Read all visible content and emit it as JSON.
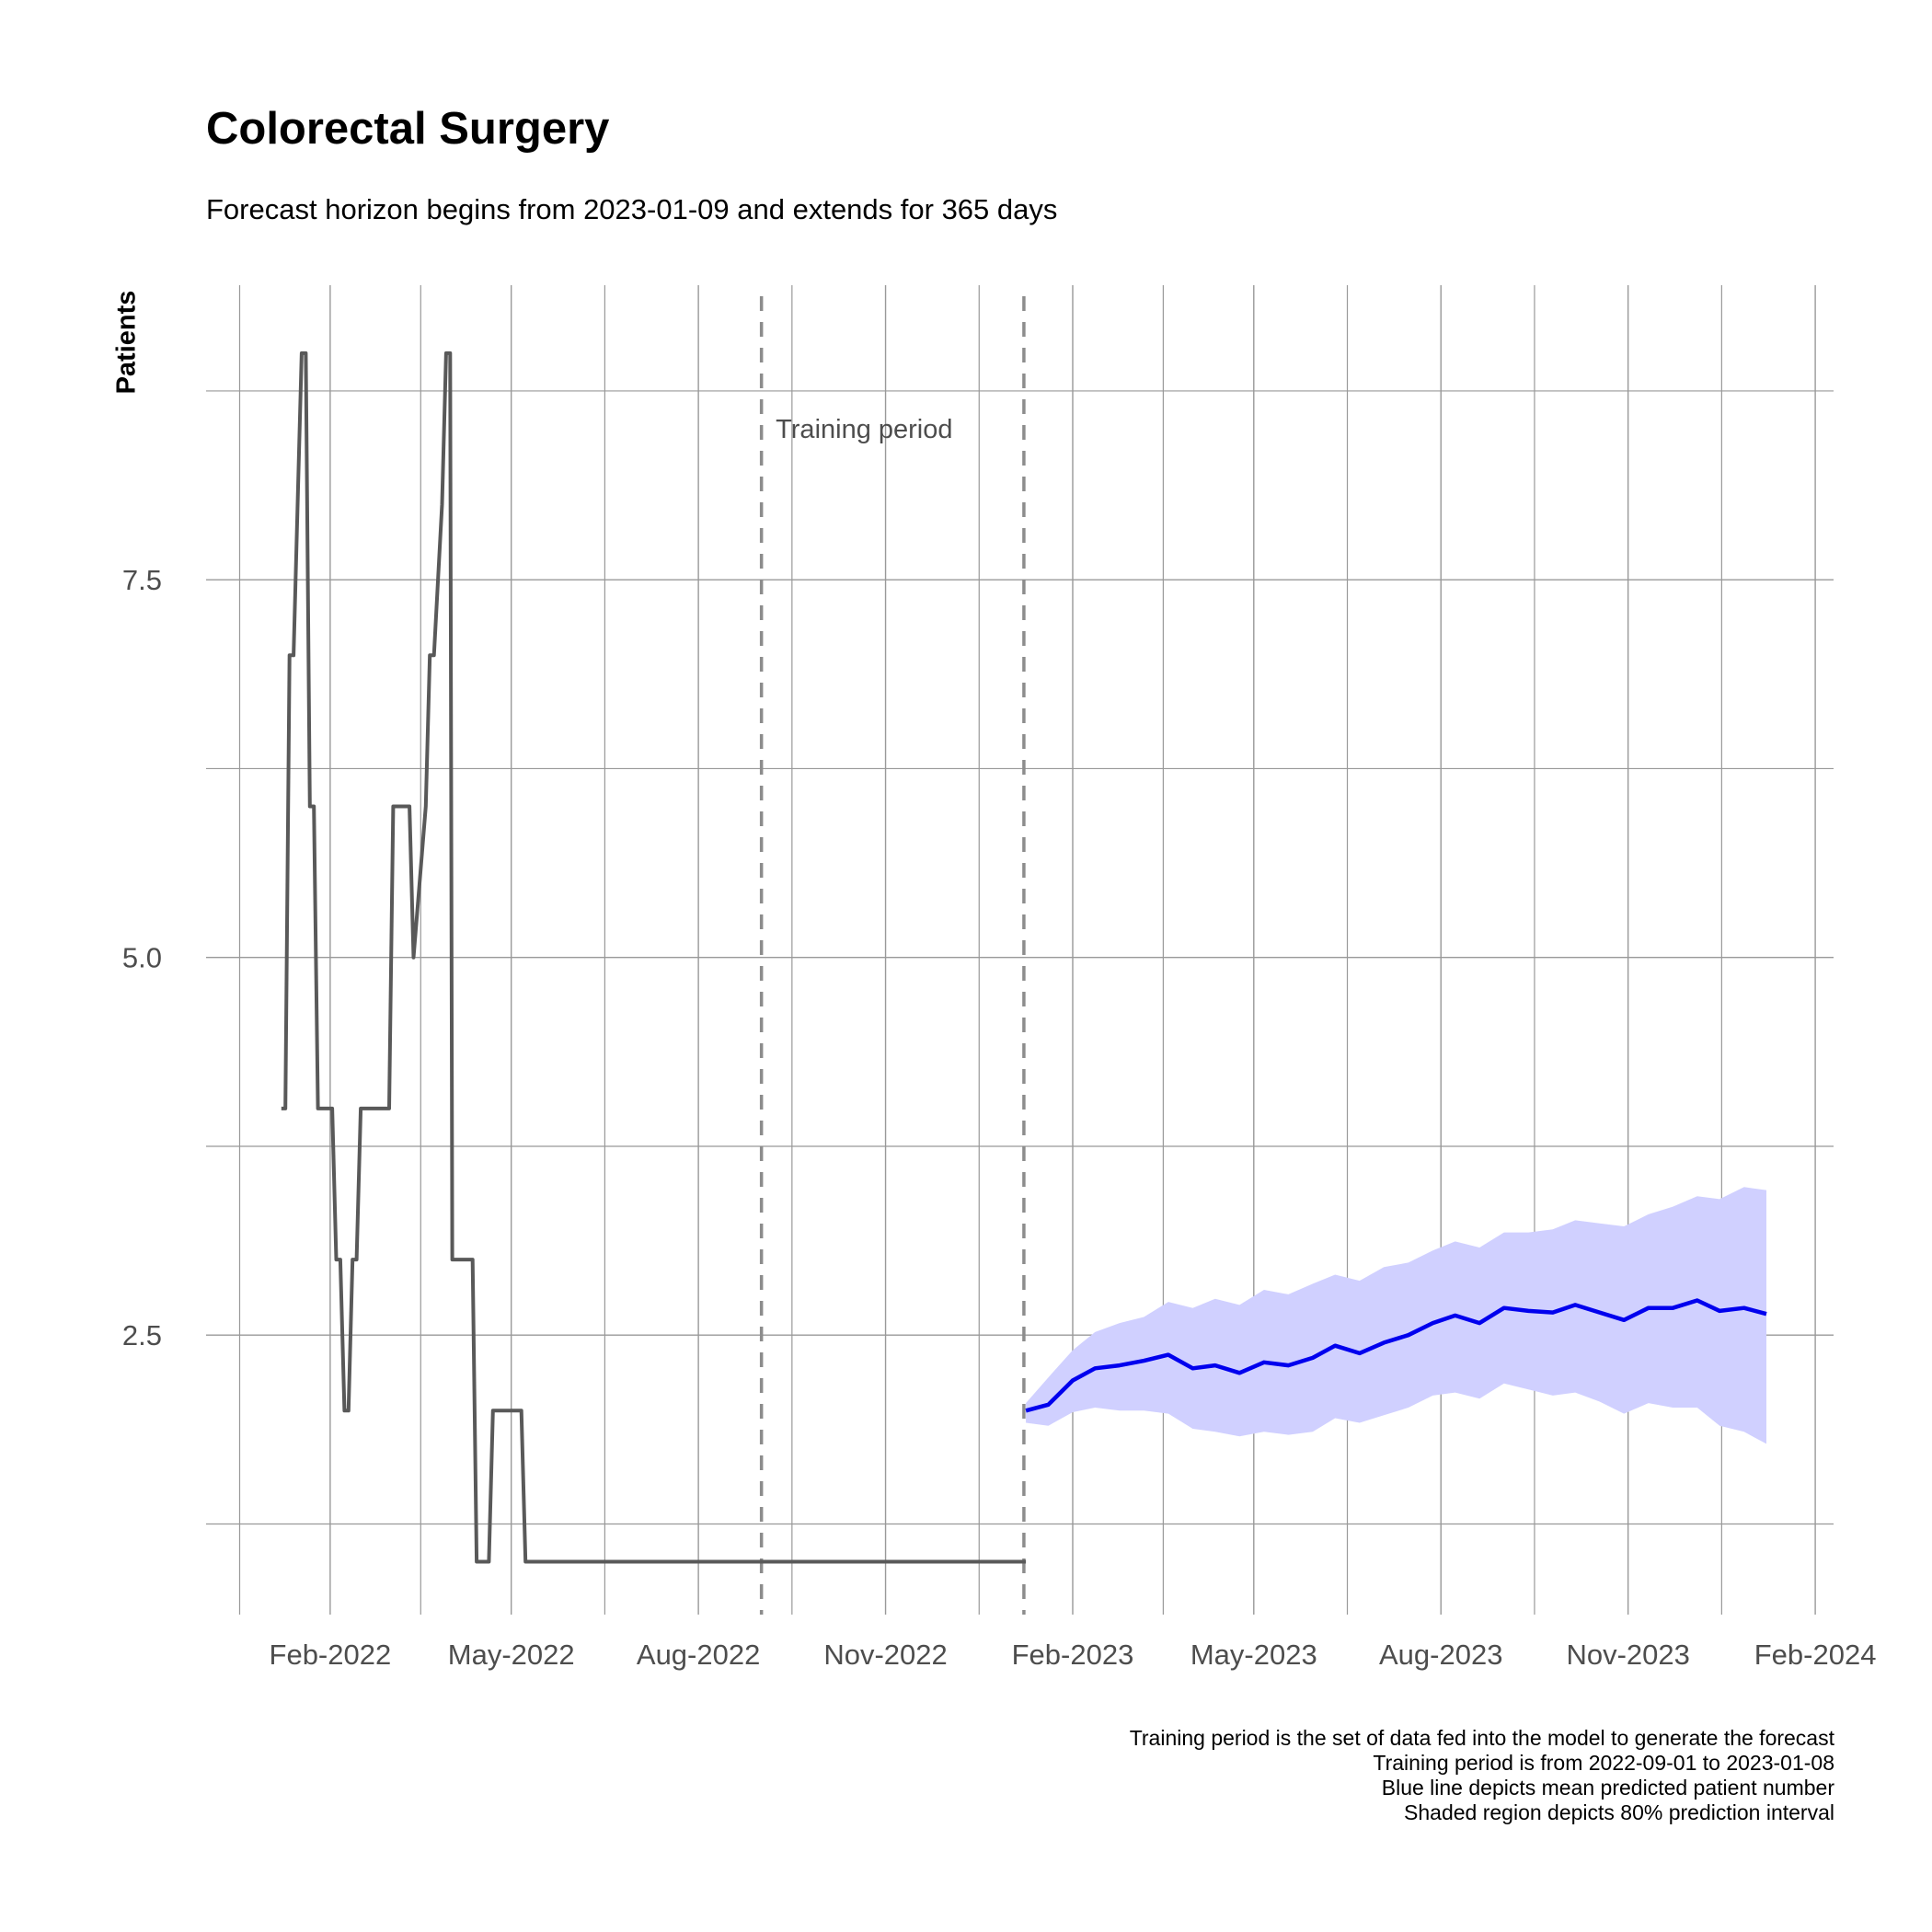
{
  "chart_data": {
    "type": "line",
    "title": "Colorectal Surgery",
    "subtitle": "Forecast horizon begins from 2023-01-09 and extends for 365 days",
    "ylabel": "Patients",
    "xlabel": "",
    "xlim": [
      "2021-12-02",
      "2024-02-10"
    ],
    "ylim": [
      0.65,
      9.45
    ],
    "y_ticks": [
      2.5,
      5.0,
      7.5
    ],
    "y_tick_labels": [
      "2.5",
      "5.0",
      "7.5"
    ],
    "x_ticks": [
      "2022-02-01",
      "2022-05-01",
      "2022-08-01",
      "2022-11-01",
      "2023-02-01",
      "2023-05-01",
      "2023-08-01",
      "2023-11-01",
      "2024-02-01"
    ],
    "x_tick_labels": [
      "Feb-2022",
      "May-2022",
      "Aug-2022",
      "Nov-2022",
      "Feb-2023",
      "May-2023",
      "Aug-2023",
      "Nov-2023",
      "Feb-2024"
    ],
    "grid": true,
    "annotations": [
      {
        "text": "Training period",
        "x": "2022-09-08",
        "y": 8.5
      }
    ],
    "vlines": [
      "2022-09-01",
      "2023-01-08"
    ],
    "series": [
      {
        "color": "#595959",
        "x": [
          "2022-01-08",
          "2022-01-10",
          "2022-01-12",
          "2022-01-14",
          "2022-01-16",
          "2022-01-18",
          "2022-01-20",
          "2022-01-22",
          "2022-01-24",
          "2022-01-26",
          "2022-02-02",
          "2022-02-04",
          "2022-02-06",
          "2022-02-08",
          "2022-02-10",
          "2022-02-12",
          "2022-02-14",
          "2022-02-16",
          "2022-03-02",
          "2022-03-04",
          "2022-03-12",
          "2022-03-14",
          "2022-03-20",
          "2022-03-22",
          "2022-03-24",
          "2022-03-28",
          "2022-03-30",
          "2022-04-01",
          "2022-04-02",
          "2022-04-04",
          "2022-04-12",
          "2022-04-14",
          "2022-04-16",
          "2022-04-18",
          "2022-04-20",
          "2022-04-22",
          "2022-05-06",
          "2022-05-08",
          "2022-05-10",
          "2022-07-26",
          "2022-07-28",
          "2022-08-12",
          "2022-08-14",
          "2022-09-10",
          "2023-01-08",
          "2023-01-09"
        ],
        "y": [
          4,
          4,
          7,
          7,
          8,
          9,
          9,
          6,
          6,
          4,
          4,
          3,
          3,
          2,
          2,
          3,
          3,
          4,
          4,
          6,
          6,
          5,
          6,
          7,
          7,
          8,
          9,
          9,
          3,
          3,
          3,
          1,
          1,
          1,
          1,
          2,
          2,
          1,
          1,
          1,
          1,
          1,
          1,
          1,
          1,
          1
        ]
      },
      {
        "name": "",
        "color": "#0000ee",
        "x": [
          "2023-01-09",
          "2023-01-20",
          "2023-02-01",
          "2023-02-12",
          "2023-02-24",
          "2023-03-08",
          "2023-03-20",
          "2023-04-01",
          "2023-04-12",
          "2023-04-24",
          "2023-05-06",
          "2023-05-18",
          "2023-05-30",
          "2023-06-10",
          "2023-06-22",
          "2023-07-04",
          "2023-07-16",
          "2023-07-28",
          "2023-08-08",
          "2023-08-20",
          "2023-09-01",
          "2023-09-13",
          "2023-09-25",
          "2023-10-06",
          "2023-10-18",
          "2023-10-30",
          "2023-11-11",
          "2023-11-23",
          "2023-12-05",
          "2023-12-16",
          "2023-12-28",
          "2024-01-08"
        ],
        "y": [
          2.0,
          2.04,
          2.2,
          2.28,
          2.3,
          2.33,
          2.37,
          2.28,
          2.3,
          2.25,
          2.32,
          2.3,
          2.35,
          2.43,
          2.38,
          2.45,
          2.5,
          2.58,
          2.63,
          2.58,
          2.68,
          2.66,
          2.65,
          2.7,
          2.65,
          2.6,
          2.68,
          2.68,
          2.73,
          2.66,
          2.68,
          2.64
        ],
        "lower": [
          1.92,
          1.9,
          1.99,
          2.02,
          2.0,
          2.0,
          1.98,
          1.88,
          1.86,
          1.83,
          1.86,
          1.84,
          1.86,
          1.95,
          1.92,
          1.97,
          2.02,
          2.1,
          2.12,
          2.08,
          2.18,
          2.14,
          2.1,
          2.12,
          2.06,
          1.98,
          2.05,
          2.02,
          2.02,
          1.9,
          1.86,
          1.78
        ],
        "upper": [
          2.05,
          2.22,
          2.4,
          2.52,
          2.58,
          2.62,
          2.72,
          2.68,
          2.74,
          2.7,
          2.8,
          2.77,
          2.84,
          2.9,
          2.86,
          2.95,
          2.98,
          3.06,
          3.12,
          3.08,
          3.18,
          3.18,
          3.2,
          3.26,
          3.24,
          3.22,
          3.3,
          3.35,
          3.42,
          3.4,
          3.48,
          3.46
        ]
      }
    ],
    "band_color": "#d0d0ff",
    "caption": [
      "Training period is the set of data fed into the model to generate the forecast",
      "Training period is from 2022-09-01 to 2023-01-08",
      "Blue line depicts mean predicted patient number",
      "Shaded region depicts 80% prediction interval"
    ]
  }
}
